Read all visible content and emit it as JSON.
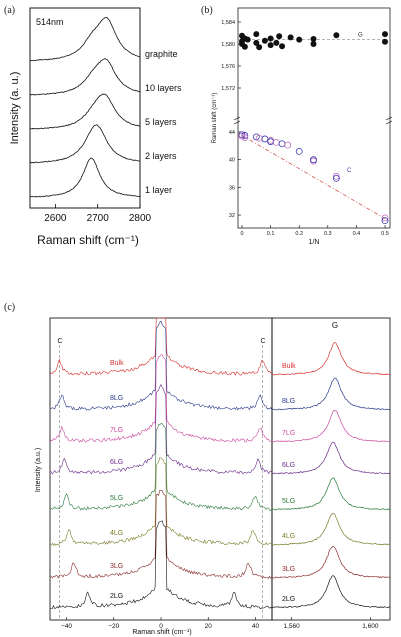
{
  "panels": {
    "a": {
      "tag": "(a)"
    },
    "b": {
      "tag": "(b)"
    },
    "c": {
      "tag": "(c)"
    }
  },
  "chart_data": [
    {
      "type": "line",
      "panel": "a",
      "annotation": "514nm",
      "xlabel": "Raman shift (cm⁻¹)",
      "ylabel": "Intensity (a. u.)",
      "xlim": [
        2540,
        2800
      ],
      "x_ticks": [
        "2600",
        "2700",
        "2800"
      ],
      "series": [
        {
          "name": "graphite",
          "peak": 2722,
          "shoulder": 2688
        },
        {
          "name": "10 layers",
          "peak": 2720,
          "shoulder": 2690
        },
        {
          "name": "5 layers",
          "peak": 2718,
          "shoulder": 2692
        },
        {
          "name": "2 layers",
          "peak": 2700,
          "shoulder": 2686
        },
        {
          "name": "1 layer",
          "peak": 2685,
          "shoulder": 2685
        }
      ]
    },
    {
      "type": "scatter",
      "panel": "b",
      "xlabel": "1/N",
      "ylabel": "Raman shift (cm⁻¹)",
      "xlim": [
        0,
        0.5
      ],
      "x_ticks": [
        "0",
        "0.1",
        "0.2",
        "0.3",
        "0.4",
        "0.5"
      ],
      "upper": {
        "ylim": [
          1568,
          1584
        ],
        "y_ticks": [
          "1,584",
          "1,580",
          "1,576",
          "1,572"
        ],
        "series_label": "G",
        "fit": 1580.8,
        "points": [
          [
            0,
            1580.5
          ],
          [
            0,
            1581.5
          ],
          [
            0,
            1580
          ],
          [
            0.01,
            1581
          ],
          [
            0.01,
            1579.5
          ],
          [
            0.02,
            1580.8
          ],
          [
            0.05,
            1581.8
          ],
          [
            0.05,
            1580.2
          ],
          [
            0.06,
            1579.4
          ],
          [
            0.08,
            1580.6
          ],
          [
            0.1,
            1581
          ],
          [
            0.1,
            1579.8
          ],
          [
            0.12,
            1580.2
          ],
          [
            0.13,
            1581.4
          ],
          [
            0.14,
            1579.6
          ],
          [
            0.17,
            1581.2
          ],
          [
            0.2,
            1580.8
          ],
          [
            0.25,
            1580
          ],
          [
            0.25,
            1580.9
          ],
          [
            0.33,
            1581.6
          ],
          [
            0.5,
            1580.4
          ],
          [
            0.5,
            1581.8
          ]
        ]
      },
      "lower": {
        "ylim": [
          31,
          44
        ],
        "y_ticks": [
          "44",
          "40",
          "36",
          "32"
        ],
        "series_label": "C",
        "fit": [
          [
            0,
            43.5
          ],
          [
            0.5,
            31.5
          ]
        ],
        "points": [
          [
            0,
            43.6
          ],
          [
            0,
            43.4
          ],
          [
            0.01,
            43.5
          ],
          [
            0.01,
            43.2
          ],
          [
            0.05,
            43.3
          ],
          [
            0.06,
            43.1
          ],
          [
            0.08,
            43
          ],
          [
            0.1,
            42.8
          ],
          [
            0.1,
            42.6
          ],
          [
            0.12,
            42.5
          ],
          [
            0.14,
            42.3
          ],
          [
            0.16,
            42.1
          ],
          [
            0.2,
            41.2
          ],
          [
            0.25,
            39.8
          ],
          [
            0.25,
            40
          ],
          [
            0.33,
            37.6
          ],
          [
            0.33,
            37.3
          ],
          [
            0.5,
            31.6
          ],
          [
            0.5,
            31.2
          ]
        ]
      }
    },
    {
      "type": "line",
      "panel": "c",
      "ylabel": "Intensity (a.u.)",
      "left": {
        "xlabel": "Raman shift (cm⁻¹)",
        "xlim": [
          -47,
          47
        ],
        "x_ticks": [
          "−40",
          "−20",
          "0",
          "20",
          "40"
        ],
        "peak_label": "C"
      },
      "right": {
        "xlabel": "Raman shift (cm⁻¹)",
        "xlim": [
          1550,
          1610
        ],
        "x_ticks": [
          "1,560",
          "1,600"
        ],
        "peak_label": "G"
      },
      "series": [
        {
          "name": "Bulk",
          "color": "#d63030",
          "c_pos": 43,
          "g_peak": 1582
        },
        {
          "name": "8LG",
          "color": "#2a3a8a",
          "c_pos": 42,
          "g_peak": 1582
        },
        {
          "name": "7LG",
          "color": "#cc4aa0",
          "c_pos": 42,
          "g_peak": 1582
        },
        {
          "name": "6LG",
          "color": "#6a2a8a",
          "c_pos": 41,
          "g_peak": 1581
        },
        {
          "name": "5LG",
          "color": "#2a7a3a",
          "c_pos": 40,
          "g_peak": 1581
        },
        {
          "name": "4LG",
          "color": "#7a7a2a",
          "c_pos": 39,
          "g_peak": 1581
        },
        {
          "name": "3LG",
          "color": "#8a2a2a",
          "c_pos": 37,
          "g_peak": 1581
        },
        {
          "name": "2LG",
          "color": "#111111",
          "c_pos": 31,
          "g_peak": 1581
        }
      ]
    }
  ]
}
